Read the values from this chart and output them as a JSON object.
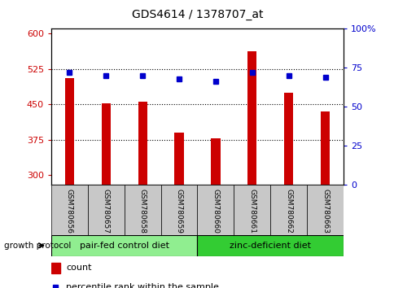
{
  "title": "GDS4614 / 1378707_at",
  "samples": [
    "GSM780656",
    "GSM780657",
    "GSM780658",
    "GSM780659",
    "GSM780660",
    "GSM780661",
    "GSM780662",
    "GSM780663"
  ],
  "counts": [
    505,
    452,
    455,
    390,
    378,
    562,
    474,
    435
  ],
  "percentiles": [
    72,
    70,
    70,
    68,
    66,
    72,
    70,
    69
  ],
  "ylim_left": [
    280,
    610
  ],
  "ylim_right": [
    0,
    100
  ],
  "yticks_left": [
    300,
    375,
    450,
    525,
    600
  ],
  "yticks_right": [
    0,
    25,
    50,
    75,
    100
  ],
  "hlines": [
    375,
    450,
    525
  ],
  "bar_color": "#cc0000",
  "dot_color": "#0000cc",
  "group1_label": "pair-fed control diet",
  "group2_label": "zinc-deficient diet",
  "group1_indices": [
    0,
    1,
    2,
    3
  ],
  "group2_indices": [
    4,
    5,
    6,
    7
  ],
  "group_label_prefix": "growth protocol",
  "legend_count_label": "count",
  "legend_pct_label": "percentile rank within the sample",
  "group1_color": "#90EE90",
  "group2_color": "#33cc33",
  "axis_label_color_left": "#cc0000",
  "axis_label_color_right": "#0000cc",
  "tick_area_color": "#c8c8c8",
  "figsize": [
    4.85,
    3.54
  ],
  "dpi": 100,
  "bar_width": 0.25
}
